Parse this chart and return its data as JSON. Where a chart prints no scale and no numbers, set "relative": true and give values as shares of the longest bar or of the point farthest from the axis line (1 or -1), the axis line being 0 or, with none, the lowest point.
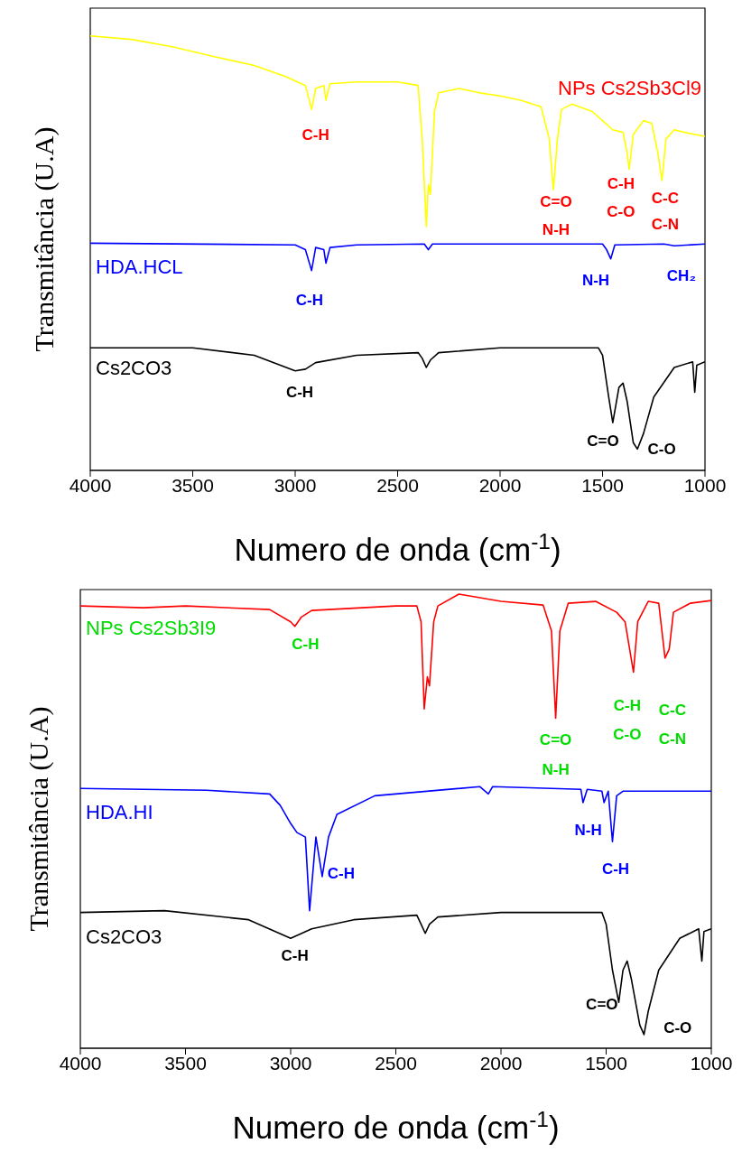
{
  "chart_data": [
    {
      "type": "line",
      "relative": true,
      "xlabel": "Numero de onda (cm$^{-1}$)",
      "ylabel": "Transmitância (U.A)",
      "xlim": [
        4000,
        1000
      ],
      "xticks": [
        4000,
        3500,
        3000,
        2500,
        2000,
        1500,
        1000
      ],
      "marker": "none",
      "line_style": "solid",
      "series": [
        {
          "name": "NPs Cs2Sb3Cl9",
          "color": "#ffff00",
          "x": [
            4000,
            3800,
            3600,
            3400,
            3200,
            3050,
            2950,
            2920,
            2900,
            2860,
            2850,
            2830,
            2700,
            2500,
            2400,
            2380,
            2360,
            2350,
            2340,
            2320,
            2300,
            2200,
            2100,
            2000,
            1900,
            1800,
            1760,
            1740,
            1720,
            1700,
            1650,
            1550,
            1500,
            1450,
            1400,
            1380,
            1370,
            1350,
            1300,
            1260,
            1230,
            1210,
            1190,
            1150,
            1100,
            1000
          ],
          "values": [
            1.0,
            0.992,
            0.975,
            0.953,
            0.932,
            0.907,
            0.886,
            0.831,
            0.879,
            0.886,
            0.852,
            0.89,
            0.894,
            0.894,
            0.886,
            0.763,
            0.561,
            0.657,
            0.636,
            0.826,
            0.869,
            0.879,
            0.869,
            0.862,
            0.852,
            0.837,
            0.763,
            0.646,
            0.763,
            0.831,
            0.843,
            0.826,
            0.805,
            0.784,
            0.778,
            0.731,
            0.693,
            0.773,
            0.805,
            0.799,
            0.731,
            0.667,
            0.763,
            0.784,
            0.778,
            0.769
          ]
        },
        {
          "name": "HDA.HCL",
          "color": "#0000ff",
          "x": [
            4000,
            3000,
            2950,
            2920,
            2900,
            2860,
            2850,
            2830,
            2700,
            2370,
            2350,
            2330,
            1500,
            1480,
            1460,
            1440,
            1200,
            1150,
            1000
          ],
          "values": [
            0.523,
            0.519,
            0.508,
            0.46,
            0.513,
            0.508,
            0.477,
            0.513,
            0.519,
            0.521,
            0.508,
            0.521,
            0.521,
            0.508,
            0.487,
            0.519,
            0.521,
            0.517,
            0.521
          ]
        },
        {
          "name": "Cs2CO3",
          "color": "#000000",
          "x": [
            4000,
            3500,
            3200,
            3000,
            2950,
            2900,
            2700,
            2400,
            2380,
            2360,
            2340,
            2300,
            2000,
            1520,
            1500,
            1470,
            1450,
            1420,
            1400,
            1380,
            1350,
            1330,
            1300,
            1250,
            1150,
            1060,
            1050,
            1040,
            1000
          ],
          "values": [
            0.282,
            0.282,
            0.265,
            0.229,
            0.233,
            0.248,
            0.265,
            0.271,
            0.258,
            0.237,
            0.254,
            0.271,
            0.282,
            0.282,
            0.265,
            0.169,
            0.11,
            0.191,
            0.201,
            0.159,
            0.064,
            0.049,
            0.085,
            0.169,
            0.237,
            0.25,
            0.18,
            0.242,
            0.25
          ]
        }
      ],
      "annotations": [
        "C-H",
        "C=O",
        "N-H",
        "C-H",
        "C-O",
        "C-C",
        "C-N",
        "C-H",
        "N-H",
        "CH₂",
        "C-H",
        "C=O",
        "C-O"
      ]
    },
    {
      "type": "line",
      "relative": true,
      "xlabel": "Numero de onda (cm$^{-1}$)",
      "ylabel": "Transmitância (U.A)",
      "xlim": [
        4000,
        1000
      ],
      "xticks": [
        4000,
        3500,
        3000,
        2500,
        2000,
        1500,
        1000
      ],
      "marker": "none",
      "line_style": "solid",
      "series": [
        {
          "name": "NPs Cs2Sb3I9",
          "color": "#ff0000",
          "x": [
            4000,
            3700,
            3500,
            3100,
            3000,
            2980,
            2950,
            2900,
            2500,
            2400,
            2380,
            2365,
            2350,
            2340,
            2320,
            2300,
            2200,
            2000,
            1800,
            1760,
            1740,
            1720,
            1680,
            1550,
            1450,
            1410,
            1370,
            1350,
            1300,
            1250,
            1220,
            1200,
            1180,
            1100,
            1000
          ],
          "values": [
            0.974,
            0.97,
            0.974,
            0.966,
            0.939,
            0.929,
            0.949,
            0.964,
            0.974,
            0.974,
            0.939,
            0.747,
            0.818,
            0.798,
            0.939,
            0.974,
            1.0,
            0.984,
            0.976,
            0.919,
            0.727,
            0.919,
            0.98,
            0.984,
            0.96,
            0.939,
            0.828,
            0.939,
            0.984,
            0.98,
            0.859,
            0.879,
            0.96,
            0.98,
            0.986
          ]
        },
        {
          "name": "HDA.HI",
          "color": "#0000ff",
          "x": [
            4000,
            3400,
            3100,
            3050,
            3000,
            2970,
            2930,
            2910,
            2880,
            2850,
            2820,
            2780,
            2600,
            2100,
            2060,
            2040,
            1620,
            1610,
            1590,
            1520,
            1510,
            1490,
            1470,
            1450,
            1420,
            1200,
            1000
          ],
          "values": [
            0.572,
            0.568,
            0.56,
            0.535,
            0.495,
            0.475,
            0.465,
            0.303,
            0.465,
            0.378,
            0.465,
            0.515,
            0.556,
            0.576,
            0.56,
            0.576,
            0.57,
            0.541,
            0.57,
            0.566,
            0.541,
            0.566,
            0.455,
            0.556,
            0.566,
            0.566,
            0.566
          ]
        },
        {
          "name": "Cs2CO3",
          "color": "#000000",
          "x": [
            4000,
            3600,
            3200,
            3000,
            2900,
            2700,
            2400,
            2380,
            2360,
            2340,
            2300,
            2000,
            1520,
            1500,
            1470,
            1440,
            1420,
            1400,
            1380,
            1340,
            1320,
            1300,
            1250,
            1150,
            1060,
            1045,
            1035,
            1000
          ],
          "values": [
            0.299,
            0.303,
            0.283,
            0.242,
            0.263,
            0.283,
            0.293,
            0.273,
            0.253,
            0.273,
            0.289,
            0.299,
            0.299,
            0.273,
            0.172,
            0.101,
            0.172,
            0.192,
            0.152,
            0.051,
            0.03,
            0.081,
            0.172,
            0.242,
            0.263,
            0.192,
            0.257,
            0.263
          ]
        }
      ],
      "annotations": [
        "C-H",
        "C=O",
        "N-H",
        "C-H",
        "C-O",
        "C-C",
        "C-N",
        "C-H",
        "N-H",
        "C-H",
        "C-H",
        "C=O",
        "C-O"
      ]
    }
  ]
}
